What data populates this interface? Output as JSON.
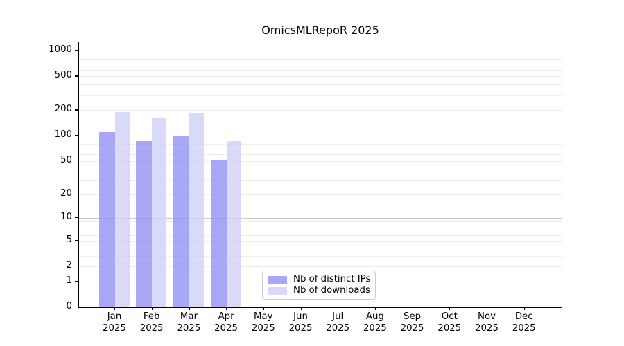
{
  "chart_data": {
    "type": "bar",
    "title": "OmicsMLRepoR 2025",
    "year_label": "2025",
    "months": [
      "Jan",
      "Feb",
      "Mar",
      "Apr",
      "May",
      "Jun",
      "Jul",
      "Aug",
      "Sep",
      "Oct",
      "Nov",
      "Dec"
    ],
    "series": [
      {
        "name": "Nb of distinct IPs",
        "color": "#a8a8f6",
        "values": [
          110,
          86,
          98,
          52,
          null,
          null,
          null,
          null,
          null,
          null,
          null,
          null
        ]
      },
      {
        "name": "Nb of downloads",
        "color": "#d9d9fa",
        "values": [
          190,
          165,
          185,
          87,
          null,
          null,
          null,
          null,
          null,
          null,
          null,
          null
        ]
      }
    ],
    "yscale": "log1p",
    "yticks": [
      0,
      1,
      2,
      5,
      10,
      20,
      50,
      100,
      200,
      500,
      1000
    ],
    "ylim_top_value": 1265,
    "grid": {
      "major_at": [
        1,
        10,
        100,
        1000
      ],
      "major_color": "#c9c9c9",
      "minor_color": "#ededed"
    },
    "legend": {
      "position": "lower-center",
      "entries": [
        "Nb of distinct IPs",
        "Nb of downloads"
      ]
    },
    "axis_color": "#000000",
    "background": "#ffffff"
  }
}
